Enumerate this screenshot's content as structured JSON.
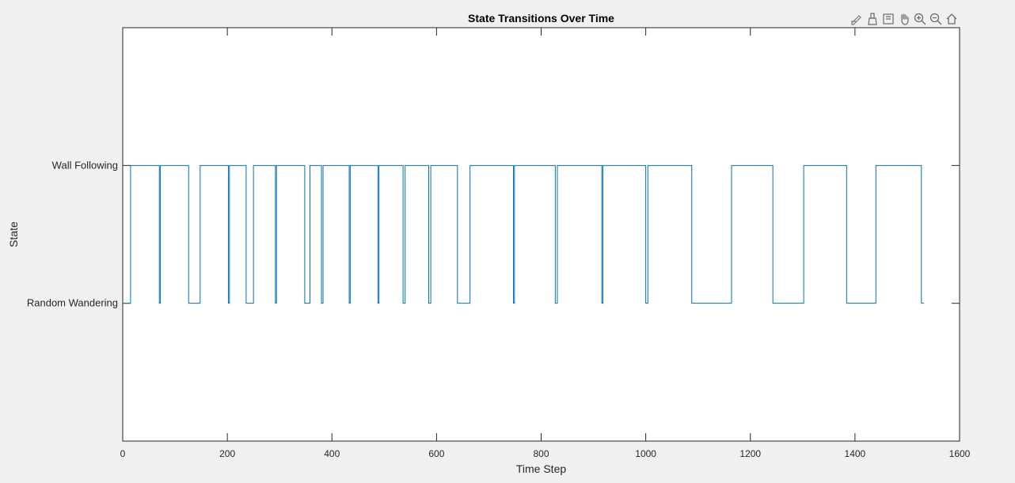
{
  "chart_data": {
    "type": "line",
    "title": "State Transitions Over Time",
    "xlabel": "Time Step",
    "ylabel": "State",
    "xlim": [
      0,
      1600
    ],
    "ylim": [
      0.0,
      3.0
    ],
    "xticks": [
      0,
      200,
      400,
      600,
      800,
      1000,
      1200,
      1400,
      1600
    ],
    "xtick_labels": [
      "0",
      "200",
      "400",
      "600",
      "800",
      "1000",
      "1200",
      "1400",
      "1600"
    ],
    "yticks": [
      1,
      2
    ],
    "ytick_labels": [
      "Random Wandering",
      "Wall Following"
    ],
    "step": "post",
    "line_color": "#0072bd",
    "grid": false,
    "series": [
      {
        "x": [
          0,
          15,
          70,
          72,
          126,
          148,
          202,
          204,
          236,
          250,
          292,
          294,
          348,
          358,
          380,
          383,
          433,
          435,
          488,
          490,
          536,
          540,
          585,
          589,
          640,
          664,
          747,
          749,
          827,
          831,
          916,
          918,
          1000,
          1004,
          1088,
          1164,
          1243,
          1302,
          1384,
          1440,
          1527,
          1532
        ],
        "y": [
          1,
          2,
          1,
          2,
          1,
          2,
          1,
          2,
          1,
          2,
          1,
          2,
          1,
          2,
          1,
          2,
          1,
          2,
          1,
          2,
          1,
          2,
          1,
          2,
          1,
          2,
          1,
          2,
          1,
          2,
          1,
          2,
          1,
          2,
          1,
          2,
          1,
          2,
          1,
          2,
          1,
          1
        ]
      }
    ]
  },
  "toolbar": {
    "icons": [
      "edit-data-icon",
      "brush-icon",
      "datatip-icon",
      "pan-icon",
      "zoom-in-icon",
      "zoom-out-icon",
      "home-icon"
    ]
  }
}
